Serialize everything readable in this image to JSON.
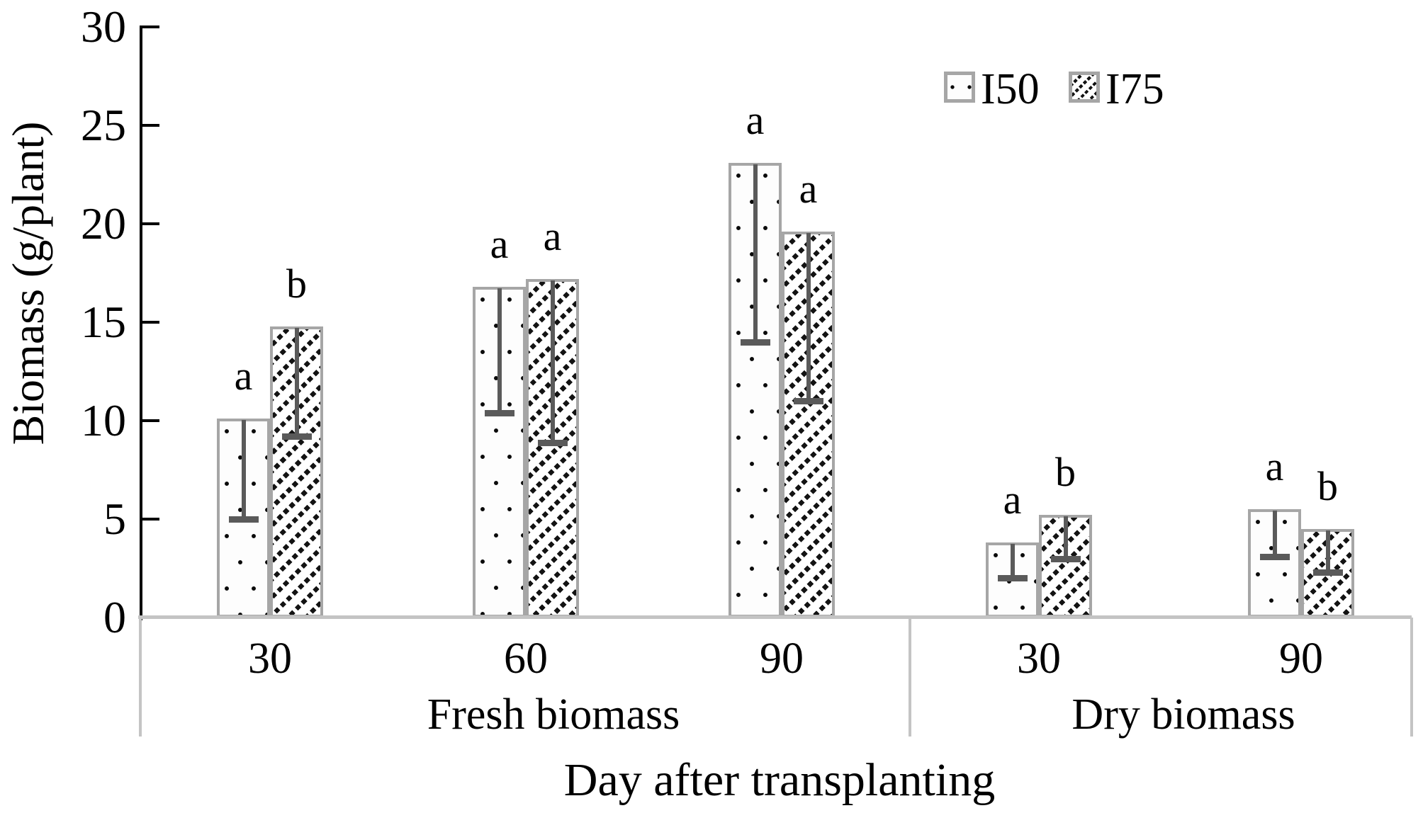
{
  "colors": {
    "bar_border": "#a6a6a6",
    "error_bar": "#5a5a5a",
    "axis_line": "#000000",
    "category_line": "#c4c4c4",
    "text": "#000000",
    "background": "#ffffff"
  },
  "chart_data": {
    "type": "bar",
    "title": "",
    "ylabel": "Biomass (g/plant)",
    "xlabel": "Day after transplanting",
    "ylim": [
      0,
      30
    ],
    "yticks": [
      0,
      5,
      10,
      15,
      20,
      25,
      30
    ],
    "grid": "off",
    "legend_position": "top-right",
    "series": [
      {
        "name": "I50",
        "pattern": "dots"
      },
      {
        "name": "I75",
        "pattern": "diagonal-hatch"
      }
    ],
    "sections": [
      {
        "label": "Fresh biomass",
        "days": [
          "30",
          "60",
          "90"
        ]
      },
      {
        "label": "Dry biomass",
        "days": [
          "30",
          "90"
        ]
      }
    ],
    "groups": [
      {
        "section": "Fresh biomass",
        "day": "30",
        "bars": [
          {
            "series": "I50",
            "value": 10.1,
            "err_low": 5.0,
            "letter": "a"
          },
          {
            "series": "I75",
            "value": 14.8,
            "err_low": 9.2,
            "letter": "b"
          }
        ]
      },
      {
        "section": "Fresh biomass",
        "day": "60",
        "bars": [
          {
            "series": "I50",
            "value": 16.8,
            "err_low": 10.4,
            "letter": "a"
          },
          {
            "series": "I75",
            "value": 17.2,
            "err_low": 8.9,
            "letter": "a"
          }
        ]
      },
      {
        "section": "Fresh biomass",
        "day": "90",
        "bars": [
          {
            "series": "I50",
            "value": 23.1,
            "err_low": 14.0,
            "letter": "a"
          },
          {
            "series": "I75",
            "value": 19.6,
            "err_low": 11.0,
            "letter": "a"
          }
        ]
      },
      {
        "section": "Dry biomass",
        "day": "30",
        "bars": [
          {
            "series": "I50",
            "value": 3.8,
            "err_low": 2.0,
            "letter": "a"
          },
          {
            "series": "I75",
            "value": 5.2,
            "err_low": 3.0,
            "letter": "b"
          }
        ]
      },
      {
        "section": "Dry biomass",
        "day": "90",
        "bars": [
          {
            "series": "I50",
            "value": 5.5,
            "err_low": 3.1,
            "letter": "a"
          },
          {
            "series": "I75",
            "value": 4.5,
            "err_low": 2.3,
            "letter": "b"
          }
        ]
      }
    ]
  }
}
